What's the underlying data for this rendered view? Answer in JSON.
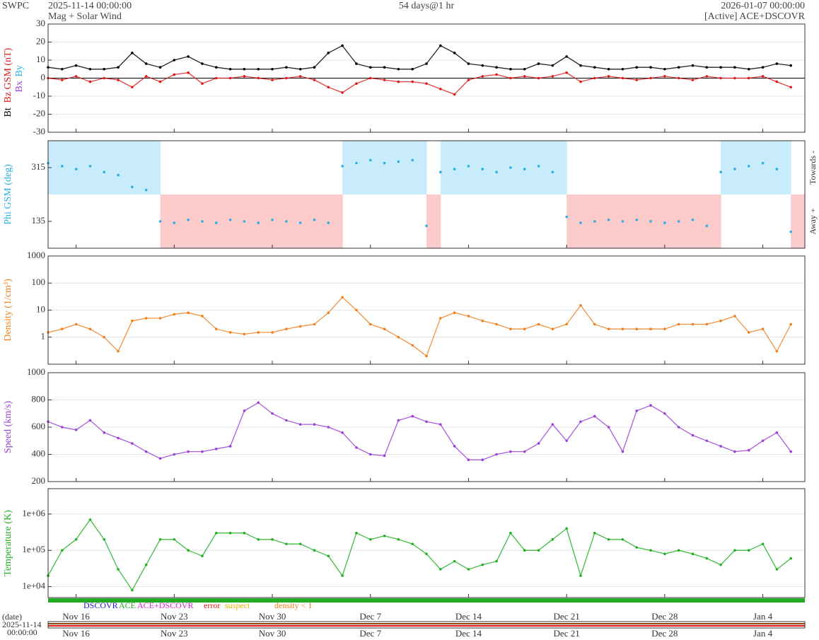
{
  "header": {
    "site": "SWPC",
    "start": "2025-11-14 00:00:00",
    "product": "Mag + Solar Wind",
    "span": "54 days@1 hr",
    "end": "2026-01-07 00:00:00",
    "source": "[Active] ACE+DSCOVR",
    "date_label": "(date)",
    "date_start": "2025-11-14",
    "time_start": "00:00:00"
  },
  "time_axis": {
    "categories": [
      null,
      null,
      "Nov 16",
      null,
      null,
      null,
      null,
      null,
      null,
      "Nov 23",
      null,
      null,
      null,
      null,
      null,
      null,
      "Nov 30",
      null,
      null,
      null,
      null,
      null,
      null,
      "Dec 7",
      null,
      null,
      null,
      null,
      null,
      null,
      "Dec 14",
      null,
      null,
      null,
      null,
      null,
      null,
      "Dec 21",
      null,
      null,
      null,
      null,
      null,
      null,
      "Dec 28",
      null,
      null,
      null,
      null,
      null,
      null,
      "Jan 4",
      null,
      null
    ]
  },
  "source_legend": [
    {
      "name": "DSCOVR",
      "color": "#1a1acc"
    },
    {
      "name": "ACE",
      "color": "#22aa22"
    },
    {
      "name": "ACE+DSCOVR",
      "color": "#e020e0"
    },
    {
      "name": "error",
      "color": "#e01a1a"
    },
    {
      "name": "suspect",
      "color": "#e8b000"
    },
    {
      "name": "density < 1",
      "color": "#f07f1e"
    }
  ],
  "chart_data": [
    {
      "type": "line",
      "ylim": [
        -30,
        30
      ],
      "yticks": [
        -30,
        -20,
        -10,
        0,
        10,
        20,
        30
      ],
      "grid": true,
      "extra_labels": [
        {
          "name": "Bx",
          "color": "#9b3fd6"
        },
        {
          "name": "By",
          "color": "#29aee6"
        }
      ],
      "series": [
        {
          "name": "Bt",
          "color": "#000000",
          "values": [
            6,
            5,
            7,
            5,
            5,
            6,
            14,
            8,
            6,
            10,
            12,
            8,
            6,
            5,
            5,
            5,
            5,
            6,
            5,
            6,
            14,
            18,
            8,
            6,
            6,
            5,
            5,
            8,
            18,
            14,
            8,
            7,
            6,
            5,
            5,
            8,
            7,
            12,
            7,
            6,
            5,
            5,
            6,
            6,
            5,
            6,
            7,
            6,
            6,
            6,
            5,
            6,
            8,
            7
          ]
        },
        {
          "name": "Bz GSM (nT)",
          "color": "#e01a1a",
          "values": [
            0,
            -1,
            1,
            -2,
            0,
            -1,
            -5,
            1,
            -2,
            2,
            3,
            -3,
            0,
            0,
            1,
            0,
            -1,
            0,
            1,
            -1,
            -5,
            -8,
            -3,
            0,
            -1,
            -2,
            -2,
            -3,
            -6,
            -9,
            -1,
            1,
            2,
            0,
            1,
            0,
            1,
            3,
            -2,
            0,
            1,
            0,
            -1,
            0,
            1,
            0,
            -1,
            1,
            0,
            0,
            0,
            1,
            -2,
            -5
          ]
        }
      ]
    },
    {
      "type": "phi",
      "ylim": [
        45,
        405
      ],
      "yticks": [
        135,
        315
      ],
      "grid": false,
      "right_labels": [
        "Towards -",
        "Away +"
      ],
      "series": [
        {
          "name": "Phi GSM (deg)",
          "color": "#29aee6",
          "values": [
            330,
            320,
            310,
            320,
            300,
            290,
            250,
            240,
            135,
            130,
            140,
            135,
            130,
            140,
            135,
            130,
            140,
            135,
            130,
            140,
            130,
            320,
            330,
            340,
            330,
            335,
            340,
            120,
            300,
            310,
            320,
            310,
            300,
            315,
            310,
            320,
            300,
            150,
            130,
            135,
            140,
            135,
            140,
            135,
            130,
            135,
            140,
            120,
            300,
            310,
            320,
            330,
            310,
            100
          ]
        }
      ]
    },
    {
      "type": "line",
      "log": true,
      "ylim": [
        0.1,
        1000
      ],
      "yticks": [
        1,
        10,
        100,
        1000
      ],
      "grid": true,
      "series": [
        {
          "name": "Density (1/cm³)",
          "color": "#f07f1e",
          "values": [
            1.5,
            2,
            3,
            2,
            1,
            0.3,
            4,
            5,
            5,
            7,
            8,
            6,
            2,
            1.5,
            1.3,
            1.5,
            1.5,
            2,
            2.5,
            3,
            8,
            30,
            10,
            3,
            2,
            1,
            0.5,
            0.2,
            5,
            8,
            6,
            4,
            3,
            2,
            2,
            3,
            2,
            3,
            15,
            3,
            2,
            2,
            2,
            2,
            2,
            3,
            3,
            3,
            4,
            6,
            1.5,
            2,
            0.3,
            3
          ]
        }
      ]
    },
    {
      "type": "line",
      "ylim": [
        200,
        1000
      ],
      "yticks": [
        200,
        400,
        600,
        800,
        1000
      ],
      "grid": true,
      "series": [
        {
          "name": "Speed (km/s)",
          "color": "#9b3fd6",
          "values": [
            640,
            600,
            580,
            650,
            560,
            520,
            480,
            420,
            370,
            400,
            420,
            420,
            440,
            460,
            720,
            780,
            700,
            650,
            620,
            620,
            600,
            560,
            450,
            400,
            390,
            650,
            680,
            640,
            620,
            460,
            360,
            360,
            400,
            420,
            420,
            480,
            620,
            500,
            640,
            680,
            600,
            420,
            720,
            760,
            700,
            600,
            540,
            500,
            460,
            420,
            430,
            500,
            560,
            420
          ]
        }
      ]
    },
    {
      "type": "line",
      "log": true,
      "ylim": [
        5000,
        5000000
      ],
      "yticks": [
        {
          "value": 10000,
          "label": "1e+04"
        },
        {
          "value": 100000,
          "label": "1e+05"
        },
        {
          "value": 1000000,
          "label": "1e+06"
        }
      ],
      "grid": true,
      "series": [
        {
          "name": "Temperature (K)",
          "color": "#22b022",
          "values": [
            20000,
            100000,
            200000,
            700000,
            200000,
            30000,
            8000,
            40000,
            200000,
            200000,
            100000,
            70000,
            300000,
            300000,
            300000,
            200000,
            200000,
            150000,
            150000,
            100000,
            70000,
            20000,
            300000,
            200000,
            250000,
            200000,
            150000,
            80000,
            30000,
            50000,
            30000,
            40000,
            50000,
            300000,
            100000,
            100000,
            200000,
            400000,
            20000,
            300000,
            200000,
            200000,
            120000,
            100000,
            80000,
            100000,
            80000,
            60000,
            40000,
            100000,
            100000,
            150000,
            30000,
            60000
          ]
        }
      ]
    }
  ]
}
